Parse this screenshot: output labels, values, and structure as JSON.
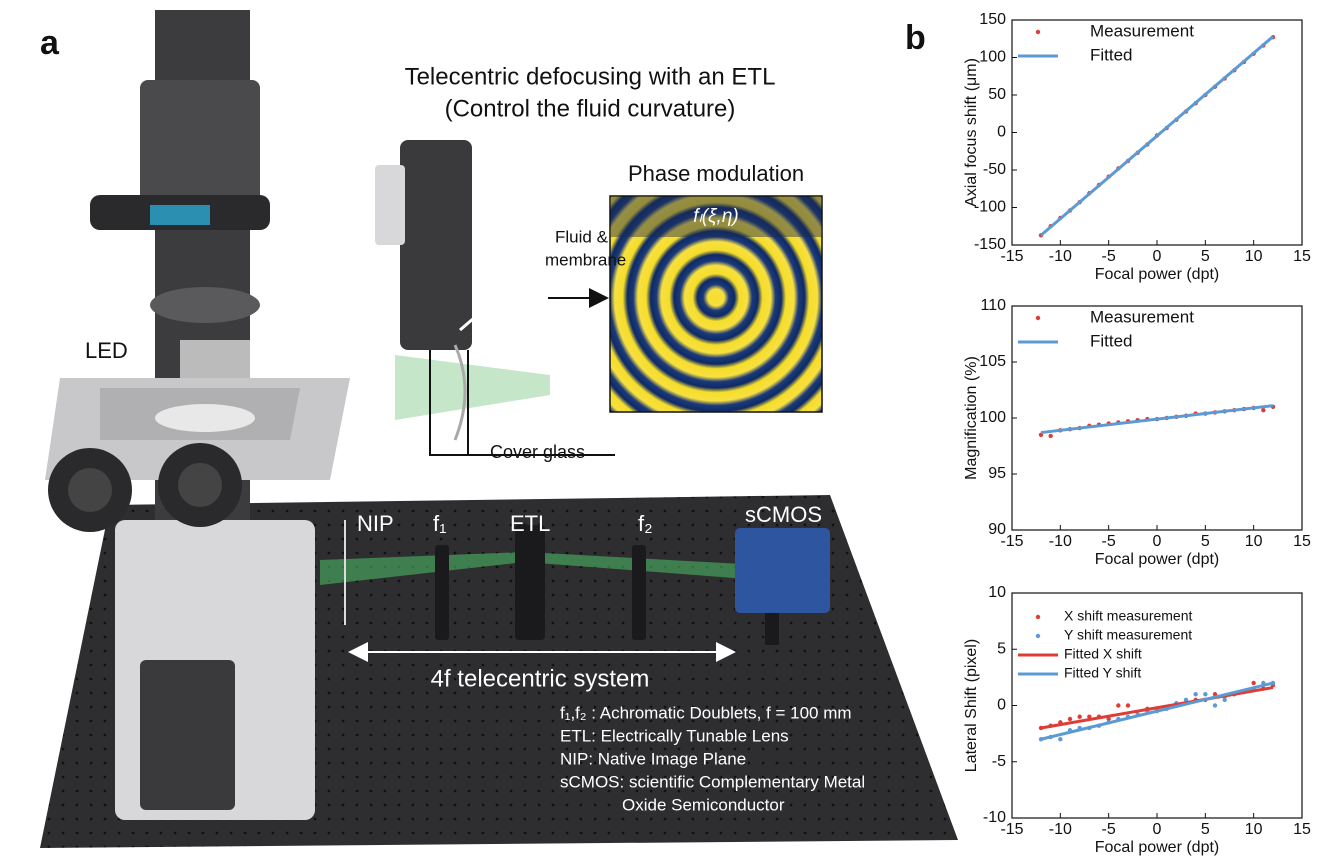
{
  "panel_a": {
    "panel_label": "a",
    "title_line1": "Telecentric defocusing with an ETL",
    "title_line2": "(Control the fluid curvature)",
    "phase_title": "Phase modulation",
    "phase_formula": "fₗ(ξ,η)",
    "fluid_line1": "Fluid &",
    "fluid_line2": "membrane",
    "led": "LED",
    "cover_glass": "Cover glass",
    "nip": "NIP",
    "f1": "f₁",
    "etl": "ETL",
    "f2": "f₂",
    "scmos": "sCMOS",
    "system": "4f telecentric system",
    "notes": [
      "f₁,f₂ : Achromatic Doublets, f = 100 mm",
      "ETL: Electrically  Tunable Lens",
      "NIP: Native Image Plane",
      "sCMOS: scientific Complementary Metal",
      "Oxide Semiconductor"
    ]
  },
  "panel_b_label": "b",
  "chart_data": [
    {
      "type": "scatter",
      "xlabel": "Focal power (dpt)",
      "ylabel": "Axial focus shift (μm)",
      "xlim": [
        -15,
        15
      ],
      "xticks": [
        -15,
        -10,
        -5,
        0,
        5,
        10,
        15
      ],
      "ylim": [
        -150,
        150
      ],
      "yticks": [
        -150,
        -100,
        -50,
        0,
        50,
        100,
        150
      ],
      "series": [
        {
          "name": "Measurement",
          "mode": "markers",
          "color": "#e03b35",
          "x": [
            -12,
            -11,
            -10,
            -9,
            -8,
            -7,
            -6,
            -5,
            -4,
            -3,
            -2,
            -1,
            0,
            1,
            2,
            3,
            4,
            5,
            6,
            7,
            8,
            9,
            10,
            11,
            12
          ],
          "values": [
            -137,
            -125,
            -114,
            -104,
            -93,
            -81,
            -70,
            -59,
            -48,
            -38,
            -27,
            -16,
            -4,
            6,
            17,
            28,
            39,
            50,
            61,
            72,
            83,
            94,
            105,
            116,
            127
          ]
        },
        {
          "name": "Fitted",
          "mode": "line",
          "color": "#5b9bd5",
          "x": [
            -12,
            12
          ],
          "values": [
            -137,
            128
          ]
        }
      ]
    },
    {
      "type": "scatter",
      "xlabel": "Focal power (dpt)",
      "ylabel": "Magnification (%)",
      "xlim": [
        -15,
        15
      ],
      "xticks": [
        -15,
        -10,
        -5,
        0,
        5,
        10,
        15
      ],
      "ylim": [
        90,
        110
      ],
      "yticks": [
        90,
        95,
        100,
        105,
        110
      ],
      "series": [
        {
          "name": "Measurement",
          "mode": "markers",
          "color": "#e03b35",
          "x": [
            -12,
            -11,
            -10,
            -9,
            -8,
            -7,
            -6,
            -5,
            -4,
            -3,
            -2,
            -1,
            0,
            1,
            2,
            3,
            4,
            5,
            6,
            7,
            8,
            9,
            10,
            11,
            12
          ],
          "values": [
            98.5,
            98.4,
            98.9,
            99.0,
            99.1,
            99.3,
            99.4,
            99.5,
            99.6,
            99.7,
            99.8,
            99.9,
            99.9,
            100.0,
            100.1,
            100.2,
            100.4,
            100.4,
            100.5,
            100.6,
            100.7,
            100.8,
            100.9,
            100.7,
            101.0
          ]
        },
        {
          "name": "Fitted",
          "mode": "line",
          "color": "#5b9bd5",
          "x": [
            -12,
            12
          ],
          "values": [
            98.7,
            101.1
          ]
        }
      ]
    },
    {
      "type": "scatter",
      "xlabel": "Focal power (dpt)",
      "ylabel": "Lateral Shift (pixel)",
      "small_legend": true,
      "xlim": [
        -15,
        15
      ],
      "xticks": [
        -15,
        -10,
        -5,
        0,
        5,
        10,
        15
      ],
      "ylim": [
        -10,
        10
      ],
      "yticks": [
        -10,
        -5,
        0,
        5,
        10
      ],
      "series": [
        {
          "name": "X shift measurement",
          "mode": "markers",
          "color": "#e03b35",
          "x": [
            -12,
            -11,
            -10,
            -9,
            -8,
            -7,
            -6,
            -5,
            -4,
            -3,
            -2,
            -1,
            0,
            1,
            2,
            3,
            4,
            5,
            6,
            7,
            8,
            9,
            10,
            11,
            12
          ],
          "values": [
            -2,
            -1.8,
            -1.5,
            -1.2,
            -1,
            -1,
            -1,
            -1.2,
            0,
            0,
            -0.8,
            -0.3,
            -0.3,
            -0.2,
            0,
            0.2,
            0.5,
            0.5,
            1,
            0.8,
            1,
            1.2,
            2,
            1.5,
            1.8
          ]
        },
        {
          "name": "Y shift measurement",
          "mode": "markers",
          "color": "#5b9bd5",
          "x": [
            -12,
            -11,
            -10,
            -9,
            -8,
            -7,
            -6,
            -5,
            -4,
            -3,
            -2,
            -1,
            0,
            1,
            2,
            3,
            4,
            5,
            6,
            7,
            8,
            9,
            10,
            11,
            12
          ],
          "values": [
            -3,
            -2.8,
            -3,
            -2.2,
            -2,
            -2,
            -1.8,
            -1.5,
            -1.2,
            -1,
            -0.8,
            -0.5,
            -0.5,
            -0.3,
            0.2,
            0.5,
            1,
            1,
            0,
            0.5,
            1,
            1.2,
            1.5,
            2,
            2
          ]
        },
        {
          "name": "Fitted X shift",
          "mode": "line",
          "color": "#e03b35",
          "x": [
            -12,
            12
          ],
          "values": [
            -2.0,
            1.6
          ]
        },
        {
          "name": "Fitted Y shift",
          "mode": "line",
          "color": "#5b9bd5",
          "x": [
            -12,
            12
          ],
          "values": [
            -3.0,
            2.0
          ]
        }
      ]
    }
  ]
}
